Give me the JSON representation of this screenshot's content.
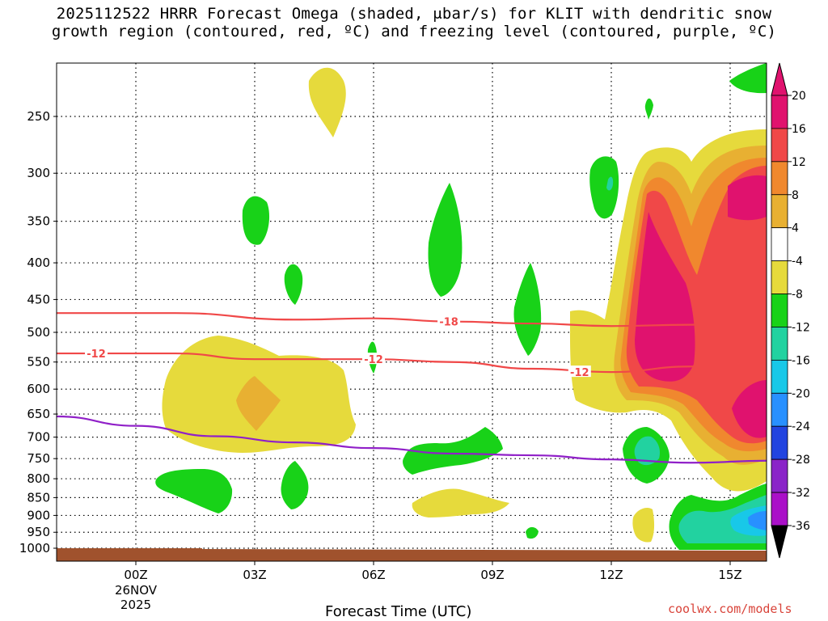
{
  "title_line1": "2025112522 HRRR Forecast Omega (shaded, μbar/s) for KLIT with dendritic snow",
  "title_line2": "growth region (contoured, red, ºC) and freezing level (contoured, purple, ºC)",
  "credit": "coolwx.com/models",
  "chart_data": {
    "type": "time-height cross-section",
    "xlabel": "Forecast Time (UTC)",
    "x_ticks": [
      {
        "hour": 0,
        "label": "00Z",
        "sub": [
          "26NOV",
          "2025"
        ]
      },
      {
        "hour": 3,
        "label": "03Z",
        "sub": []
      },
      {
        "hour": 6,
        "label": "06Z",
        "sub": []
      },
      {
        "hour": 9,
        "label": "09Z",
        "sub": []
      },
      {
        "hour": 12,
        "label": "12Z",
        "sub": []
      },
      {
        "hour": 15,
        "label": "15Z",
        "sub": []
      }
    ],
    "xlim": [
      -2,
      16
    ],
    "y_scale": "log pressure (hPa), inverted",
    "ylim": [
      1040,
      200
    ],
    "y_ticks": [
      250,
      300,
      350,
      400,
      450,
      500,
      550,
      600,
      650,
      700,
      750,
      800,
      850,
      900,
      950,
      1000
    ],
    "grid": "dotted at each pressure level",
    "colorbar": {
      "labels": [
        "20",
        "16",
        "12",
        "8",
        "4",
        "-4",
        "-8",
        "-12",
        "-16",
        "-20",
        "-24",
        "-28",
        "-32",
        "-36"
      ],
      "bins": [
        {
          "range": "20+",
          "color": "#e0126e"
        },
        {
          "range": "16 to 20",
          "color": "#e0126e"
        },
        {
          "range": "12 to 16",
          "color": "#f04848"
        },
        {
          "range": "8 to 12",
          "color": "#f0882e"
        },
        {
          "range": "4 to 8",
          "color": "#e8b032"
        },
        {
          "range": "-4 to 4",
          "color": "#ffffff"
        },
        {
          "range": "-8 to -4",
          "color": "#e6da3c"
        },
        {
          "range": "-12 to -8",
          "color": "#18d218"
        },
        {
          "range": "-16 to -12",
          "color": "#22d2a0"
        },
        {
          "range": "-20 to -16",
          "color": "#18c8e8"
        },
        {
          "range": "-24 to -20",
          "color": "#2890ff"
        },
        {
          "range": "-28 to -24",
          "color": "#2244e0"
        },
        {
          "range": "-32 to -28",
          "color": "#8a24c8"
        },
        {
          "range": "-36 to -32",
          "color": "#aa10c8"
        },
        {
          "range": "below -36",
          "color": "#a8a8a8"
        }
      ]
    },
    "contours": [
      {
        "name": "-18",
        "color": "#f04848",
        "points": [
          [
            -2,
            470
          ],
          [
            1,
            470
          ],
          [
            4,
            480
          ],
          [
            6,
            478
          ],
          [
            8,
            483
          ],
          [
            10,
            486
          ],
          [
            12,
            490
          ],
          [
            14,
            488
          ],
          [
            16,
            484
          ]
        ],
        "label_at": [
          7.9,
          483
        ]
      },
      {
        "name": "-12",
        "color": "#f04848",
        "points": [
          [
            -2,
            535
          ],
          [
            1,
            535
          ],
          [
            3,
            545
          ],
          [
            6,
            545
          ],
          [
            8,
            550
          ],
          [
            10,
            562
          ],
          [
            12,
            568
          ],
          [
            14,
            558
          ],
          [
            16,
            550
          ]
        ],
        "label_at": [
          -1.0,
          535
        ],
        "label_at2": [
          6.0,
          545
        ],
        "label_at3": [
          11.2,
          568
        ]
      },
      {
        "name": "freezing level",
        "color": "#9020c8",
        "points": [
          [
            -2,
            655
          ],
          [
            0,
            675
          ],
          [
            2,
            698
          ],
          [
            4,
            712
          ],
          [
            6,
            725
          ],
          [
            8,
            738
          ],
          [
            10,
            742
          ],
          [
            12,
            752
          ],
          [
            14,
            760
          ],
          [
            16,
            755
          ]
        ]
      }
    ],
    "terrain_color": "#a0522d"
  },
  "icons": {
    "colorbar_top": "up-triangle-icon",
    "colorbar_bottom": "down-triangle-icon"
  }
}
